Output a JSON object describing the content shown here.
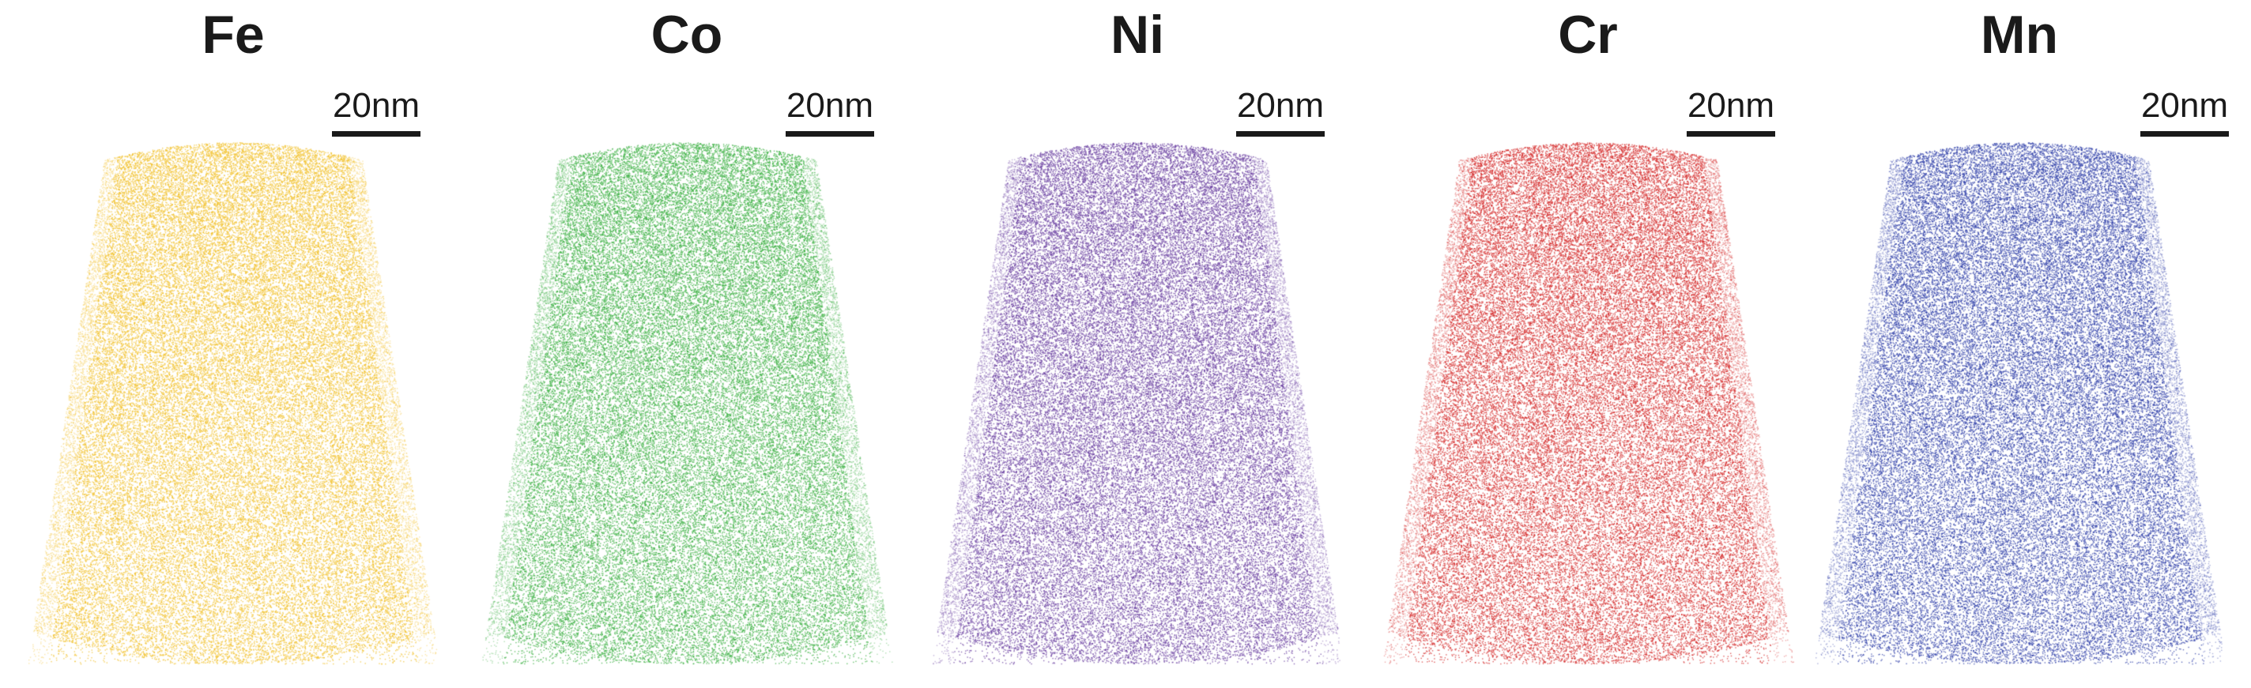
{
  "panels": [
    {
      "element": "Fe",
      "scale_label": "20nm",
      "color": "#f2c12e"
    },
    {
      "element": "Co",
      "scale_label": "20nm",
      "color": "#3cb043"
    },
    {
      "element": "Ni",
      "scale_label": "20nm",
      "color": "#6a3fa0"
    },
    {
      "element": "Cr",
      "scale_label": "20nm",
      "color": "#d42a2a"
    },
    {
      "element": "Mn",
      "scale_label": "20nm",
      "color": "#2f3fa8"
    }
  ]
}
